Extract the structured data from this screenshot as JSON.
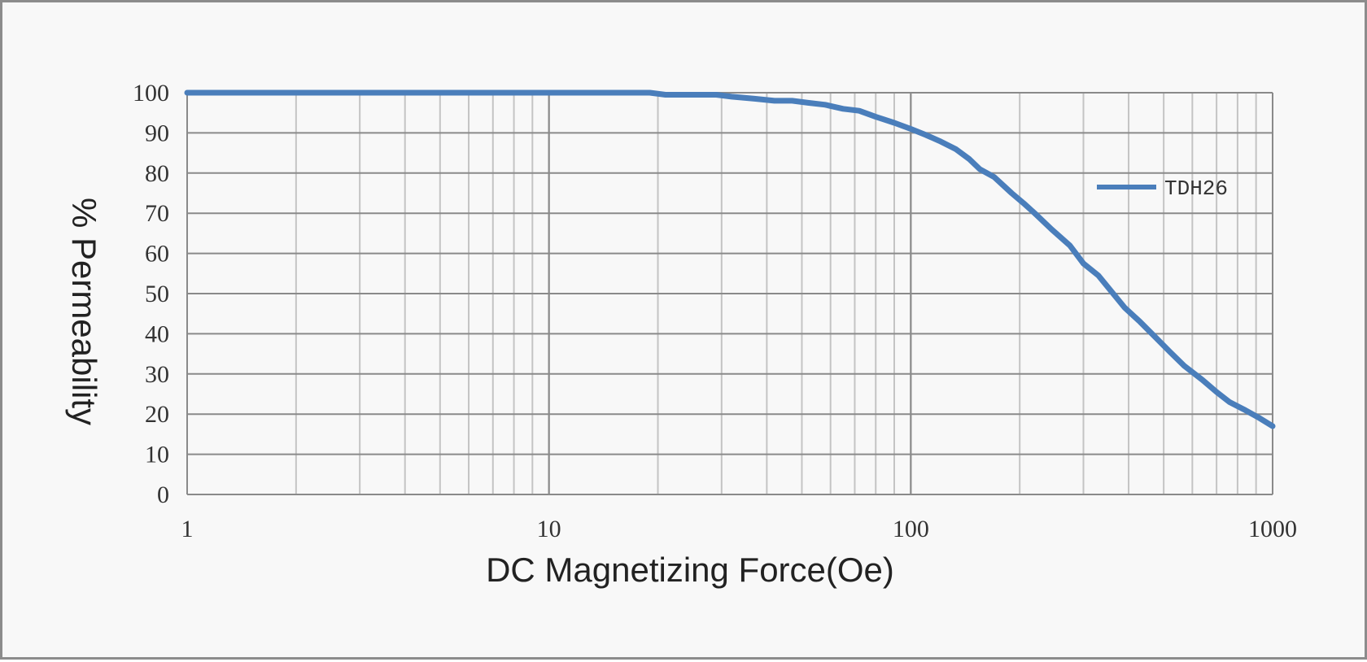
{
  "chart_data": {
    "type": "line",
    "title": "",
    "xlabel": "DC Magnetizing Force(Oe)",
    "ylabel": "% Permeability",
    "xscale": "log",
    "xlim": [
      1,
      1000
    ],
    "ylim": [
      0,
      100
    ],
    "grid": true,
    "legend_position": "right",
    "x_ticks": [
      "1",
      "10",
      "100",
      "1000"
    ],
    "y_ticks": [
      "0",
      "10",
      "20",
      "30",
      "40",
      "50",
      "60",
      "70",
      "80",
      "90",
      "100"
    ],
    "series": [
      {
        "name": "TDH26",
        "color": "#4a7ebb",
        "x": [
          1,
          2,
          5,
          10,
          19,
          21,
          29,
          32,
          37,
          42,
          47,
          52,
          58,
          65,
          72,
          80,
          90,
          100,
          110,
          120,
          133,
          145,
          155,
          170,
          190,
          205,
          220,
          245,
          275,
          300,
          330,
          355,
          390,
          430,
          470,
          520,
          570,
          640,
          700,
          760,
          840,
          920,
          1000
        ],
        "y": [
          100,
          100,
          100,
          100,
          100,
          99.5,
          99.5,
          99,
          98.5,
          98,
          98,
          97.5,
          97,
          96,
          95.5,
          94,
          92.5,
          91,
          89.5,
          88,
          86,
          83.5,
          81,
          79,
          75,
          72.5,
          70,
          66,
          62,
          57.5,
          54.5,
          51,
          46.5,
          43,
          39.5,
          35.5,
          32,
          28.5,
          25.5,
          23,
          21,
          19,
          17
        ]
      }
    ]
  }
}
